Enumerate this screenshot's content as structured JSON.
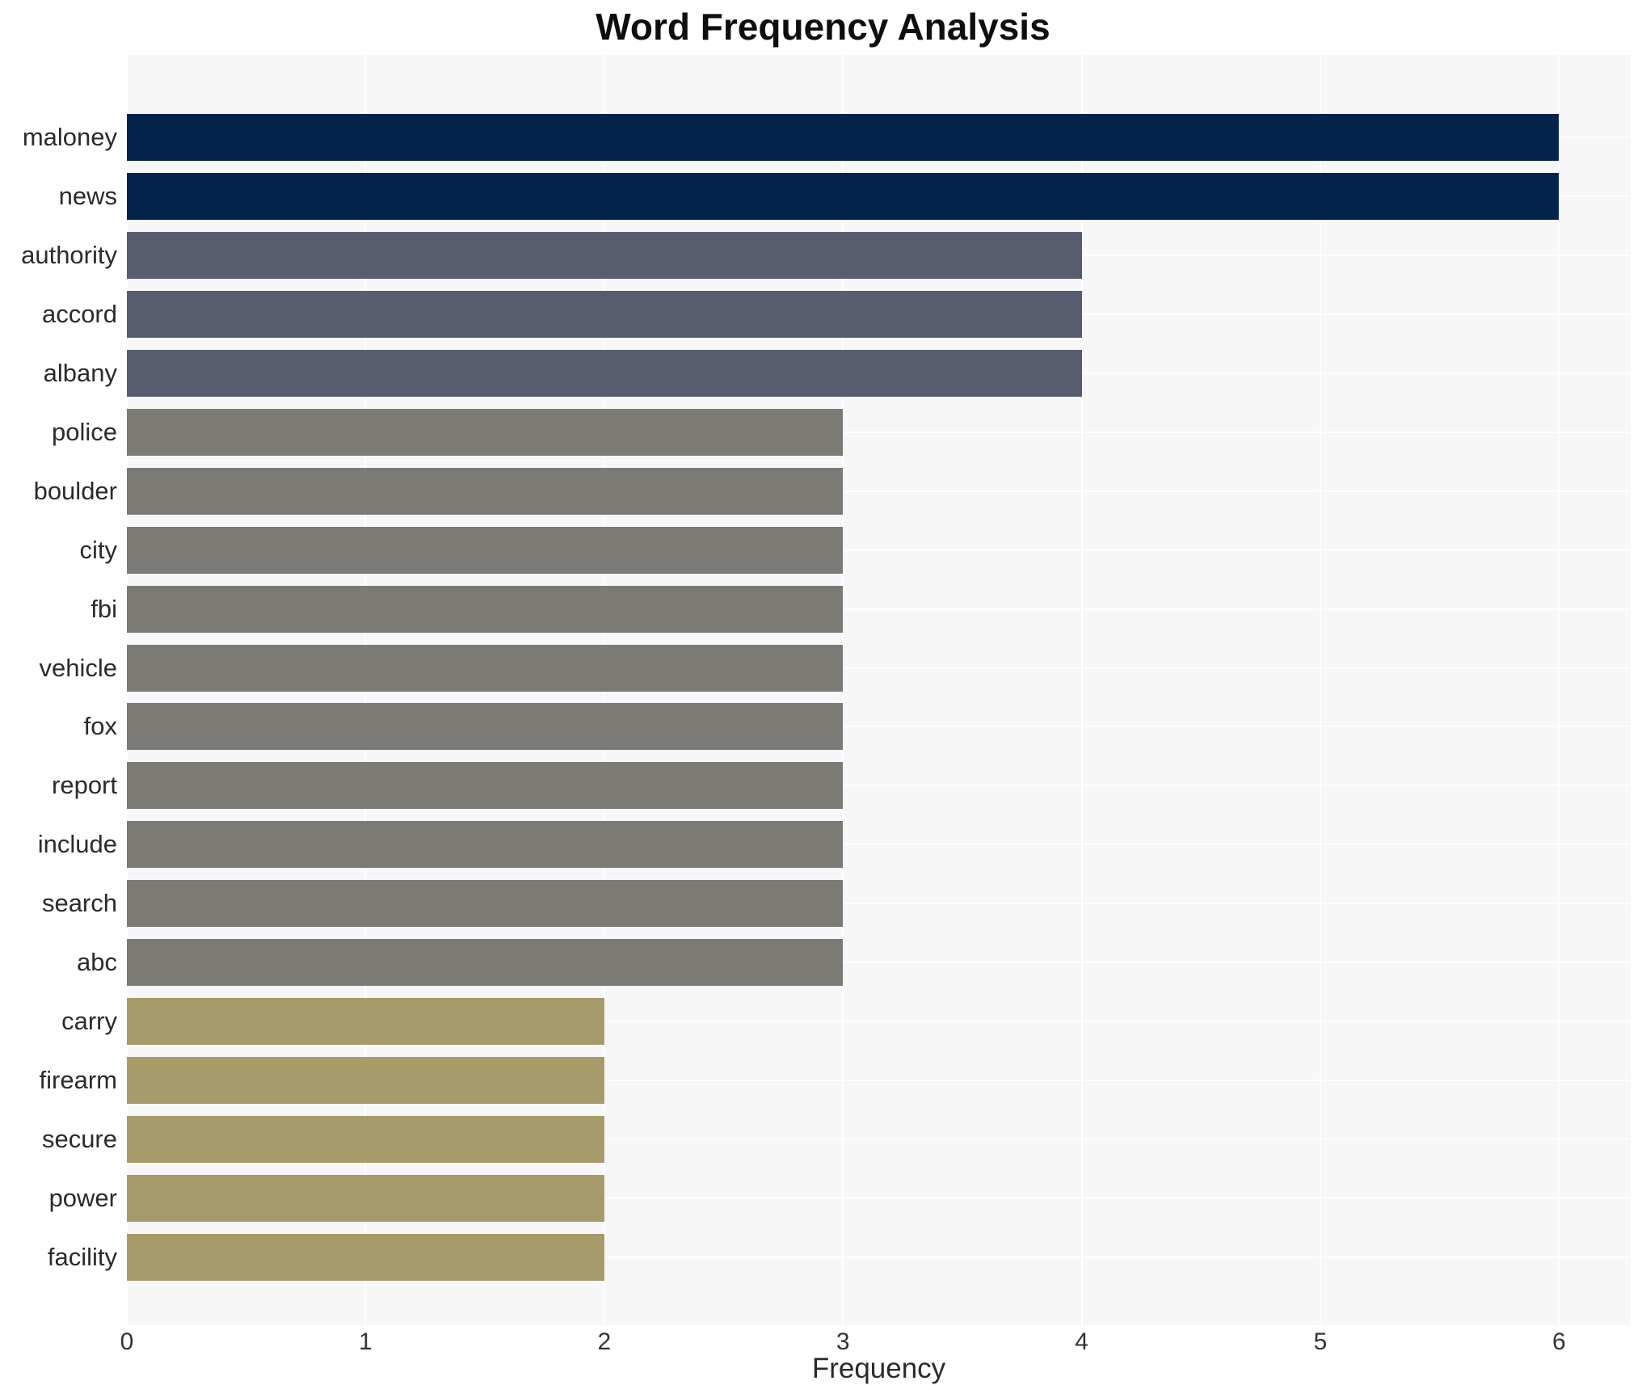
{
  "chart_data": {
    "type": "bar",
    "orientation": "horizontal",
    "title": "Word Frequency Analysis",
    "xlabel": "Frequency",
    "ylabel": "",
    "categories": [
      "maloney",
      "news",
      "authority",
      "accord",
      "albany",
      "police",
      "boulder",
      "city",
      "fbi",
      "vehicle",
      "fox",
      "report",
      "include",
      "search",
      "abc",
      "carry",
      "firearm",
      "secure",
      "power",
      "facility"
    ],
    "values": [
      6,
      6,
      4,
      4,
      4,
      3,
      3,
      3,
      3,
      3,
      3,
      3,
      3,
      3,
      3,
      2,
      2,
      2,
      2,
      2
    ],
    "xticks": [
      0,
      1,
      2,
      3,
      4,
      5,
      6
    ],
    "xlim": [
      0,
      6.3
    ],
    "grid": true,
    "legend": false,
    "bar_colors_by_value": {
      "6": "#03224c",
      "4": "#575d6e",
      "3": "#7b7a75",
      "2": "#a89b6a"
    },
    "plot_background": "#f7f7f7",
    "gridline_color": "#ffffff"
  }
}
